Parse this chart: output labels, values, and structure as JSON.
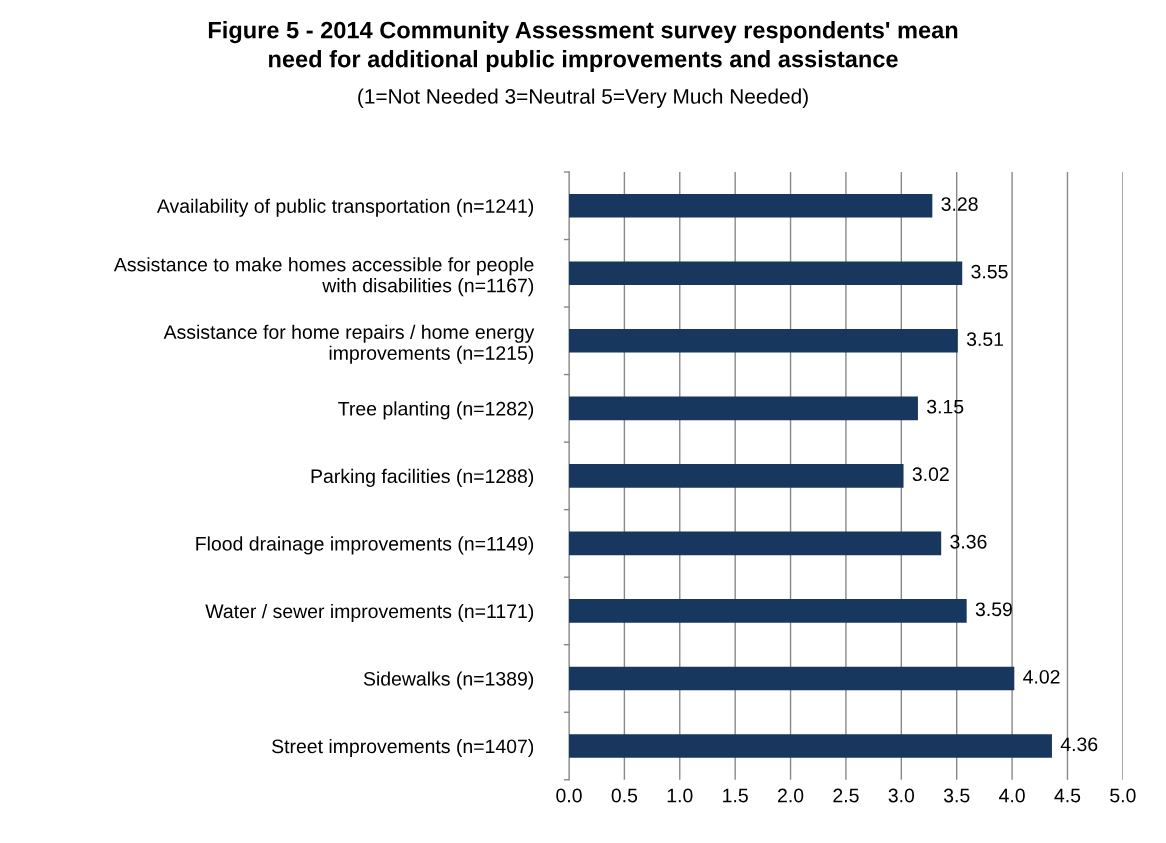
{
  "chart_data": {
    "type": "bar",
    "orientation": "horizontal",
    "title": "Figure 5 - 2014 Community Assessment survey respondents' mean\nneed for additional public improvements and assistance",
    "subtitle": "(1=Not Needed 3=Neutral 5=Very Much Needed)",
    "categories": [
      "Availability of public transportation (n=1241)",
      "Assistance to make homes accessible for people\nwith disabilities (n=1167)",
      "Assistance for home repairs / home energy\nimprovements (n=1215)",
      "Tree planting (n=1282)",
      "Parking facilities (n=1288)",
      "Flood drainage improvements (n=1149)",
      "Water / sewer improvements (n=1171)",
      "Sidewalks (n=1389)",
      "Street improvements (n=1407)"
    ],
    "values": [
      3.28,
      3.55,
      3.51,
      3.15,
      3.02,
      3.36,
      3.59,
      4.02,
      4.36
    ],
    "color": "#17375e",
    "xlim": [
      0,
      5
    ],
    "xticks": [
      {
        "value": 0,
        "label": "0.0"
      },
      {
        "value": 0.5,
        "label": "0.5"
      },
      {
        "value": 1,
        "label": "1.0"
      },
      {
        "value": 1.5,
        "label": "1.5"
      },
      {
        "value": 2,
        "label": "2.0"
      },
      {
        "value": 2.5,
        "label": "2.5"
      },
      {
        "value": 3,
        "label": "3.0"
      },
      {
        "value": 3.5,
        "label": "3.5"
      },
      {
        "value": 4,
        "label": "4.0"
      },
      {
        "value": 4.5,
        "label": "4.5"
      },
      {
        "value": 5,
        "label": "5.0"
      }
    ],
    "grid": "x",
    "data_labels": true
  }
}
